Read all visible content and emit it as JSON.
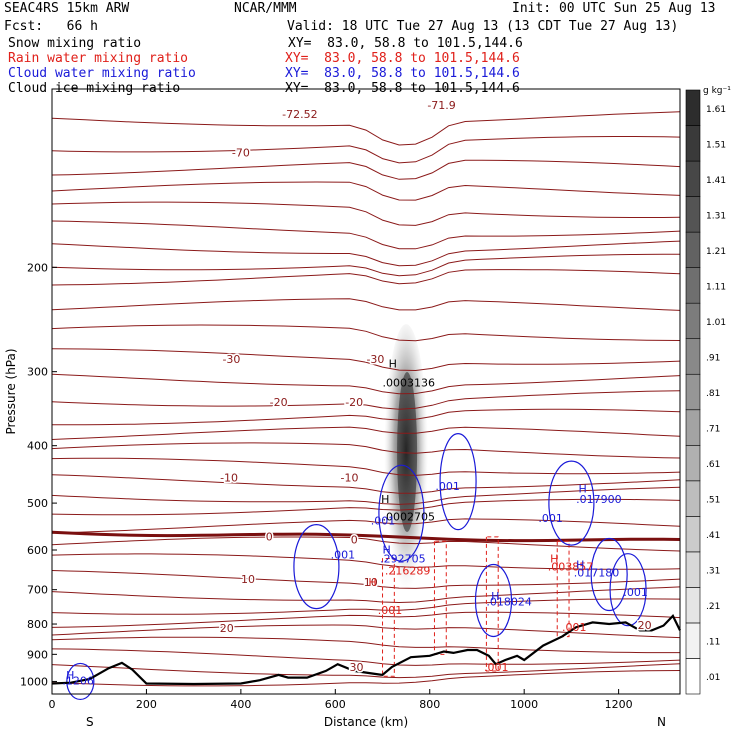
{
  "header": {
    "model": "SEAC4RS 15km ARW",
    "org": "NCAR/MMM",
    "init": "Init: 00 UTC Sun 25 Aug 13",
    "fcst": "Fcst:   66 h",
    "valid": "Valid: 18 UTC Tue 27 Aug 13 (13 CDT Tue 27 Aug 13)"
  },
  "fields": [
    {
      "name": "Snow mixing ratio",
      "xy": "XY=  83.0, 58.8 to 101.5,144.6",
      "color": "#000000"
    },
    {
      "name": "Rain water mixing ratio",
      "xy": "XY=  83.0, 58.8 to 101.5,144.6",
      "color": "#e0201a"
    },
    {
      "name": "Cloud water mixing ratio",
      "xy": "XY=  83.0, 58.8 to 101.5,144.6",
      "color": "#1a1ad8"
    },
    {
      "name": "Cloud ice mixing ratio",
      "xy": "XY=  83.0, 58.8 to 101.5,144.6",
      "color": "#000000"
    }
  ],
  "chart_data": {
    "type": "contour",
    "xlabel": "Distance (km)",
    "ylabel": "Pressure (hPa)",
    "xlim": [
      0,
      1330
    ],
    "ylim": [
      1050,
      100
    ],
    "y_log_pressure": true,
    "x_ticks": [
      0,
      200,
      400,
      600,
      800,
      1000,
      1200
    ],
    "y_ticks": [
      200,
      300,
      400,
      500,
      600,
      700,
      800,
      900,
      1000
    ],
    "direction_labels": {
      "left": "S",
      "right": "N"
    },
    "colorbar": {
      "unit": "g kg⁻¹",
      "levels": [
        ".01",
        ".11",
        ".21",
        ".31",
        ".41",
        ".51",
        ".61",
        ".71",
        ".81",
        ".91",
        "1.01",
        "1.11",
        "1.21",
        "1.31",
        "1.41",
        "1.51",
        "1.61"
      ]
    },
    "temperature_contours": {
      "color": "#8b1a1a",
      "labels": [
        {
          "text": "-72.52",
          "x": 525,
          "p": 112
        },
        {
          "text": "-71.9",
          "x": 825,
          "p": 108
        },
        {
          "text": "-70",
          "x": 400,
          "p": 130
        },
        {
          "text": "-30",
          "x": 380,
          "p": 290
        },
        {
          "text": "-30",
          "x": 685,
          "p": 290
        },
        {
          "text": "-20",
          "x": 480,
          "p": 343
        },
        {
          "text": "-20",
          "x": 640,
          "p": 343
        },
        {
          "text": "-10",
          "x": 375,
          "p": 460
        },
        {
          "text": "-10",
          "x": 630,
          "p": 460
        },
        {
          "text": "0",
          "x": 460,
          "p": 578
        },
        {
          "text": "0",
          "x": 640,
          "p": 585
        },
        {
          "text": "10",
          "x": 415,
          "p": 682
        },
        {
          "text": "10",
          "x": 675,
          "p": 690
        },
        {
          "text": "20",
          "x": 370,
          "p": 825
        },
        {
          "text": "20",
          "x": 1255,
          "p": 815
        },
        {
          "text": "30",
          "x": 645,
          "p": 960
        }
      ]
    },
    "annotations": [
      {
        "text": "H",
        "x": 713,
        "p": 295,
        "color": "#000000"
      },
      {
        "text": ".0003136",
        "x": 700,
        "p": 318,
        "color": "#000000"
      },
      {
        "text": "H",
        "x": 697,
        "p": 500,
        "color": "#000000"
      },
      {
        "text": ".0002705",
        "x": 700,
        "p": 535,
        "color": "#000000"
      },
      {
        "text": ".001",
        "x": 675,
        "p": 543,
        "color": "#1a1ad8"
      },
      {
        "text": ".001",
        "x": 812,
        "p": 475,
        "color": "#1a1ad8"
      },
      {
        "text": "H",
        "x": 1115,
        "p": 480,
        "color": "#1a1ad8"
      },
      {
        "text": ".017900",
        "x": 1110,
        "p": 500,
        "color": "#1a1ad8"
      },
      {
        "text": ".001",
        "x": 1030,
        "p": 538,
        "color": "#1a1ad8"
      },
      {
        "text": ".001",
        "x": 590,
        "p": 620,
        "color": "#1a1ad8"
      },
      {
        "text": "H",
        "x": 700,
        "p": 608,
        "color": "#1a1ad8"
      },
      {
        "text": ".292705",
        "x": 695,
        "p": 630,
        "color": "#1a1ad8"
      },
      {
        "text": ".216289",
        "x": 705,
        "p": 660,
        "color": "#e0201a"
      },
      {
        "text": "H",
        "x": 1055,
        "p": 630,
        "color": "#e0201a"
      },
      {
        "text": ".003857",
        "x": 1050,
        "p": 650,
        "color": "#e0201a"
      },
      {
        "text": "H",
        "x": 1110,
        "p": 645,
        "color": "#1a1ad8"
      },
      {
        "text": ".017180",
        "x": 1105,
        "p": 665,
        "color": "#1a1ad8"
      },
      {
        "text": ".001",
        "x": 1210,
        "p": 718,
        "color": "#1a1ad8"
      },
      {
        "text": "H",
        "x": 670,
        "p": 690,
        "color": "#e0201a"
      },
      {
        "text": "H",
        "x": 930,
        "p": 728,
        "color": "#1a1ad8"
      },
      {
        "text": ".018024",
        "x": 920,
        "p": 745,
        "color": "#1a1ad8"
      },
      {
        "text": ".001",
        "x": 690,
        "p": 770,
        "color": "#e0201a"
      },
      {
        "text": ".001",
        "x": 1080,
        "p": 822,
        "color": "#e0201a"
      },
      {
        "text": ".001",
        "x": 915,
        "p": 960,
        "color": "#e0201a"
      },
      {
        "text": "H",
        "x": 30,
        "p": 990,
        "color": "#1a1ad8"
      },
      {
        "text": ".1206",
        "x": 22,
        "p": 1012,
        "color": "#1a1ad8"
      }
    ],
    "terrain_pressure": [
      {
        "x": 0,
        "p": 1008
      },
      {
        "x": 40,
        "p": 1005
      },
      {
        "x": 80,
        "p": 990
      },
      {
        "x": 120,
        "p": 950
      },
      {
        "x": 148,
        "p": 930
      },
      {
        "x": 170,
        "p": 955
      },
      {
        "x": 200,
        "p": 1008
      },
      {
        "x": 300,
        "p": 1010
      },
      {
        "x": 400,
        "p": 1008
      },
      {
        "x": 440,
        "p": 995
      },
      {
        "x": 480,
        "p": 975
      },
      {
        "x": 500,
        "p": 985
      },
      {
        "x": 540,
        "p": 985
      },
      {
        "x": 580,
        "p": 960
      },
      {
        "x": 605,
        "p": 935
      },
      {
        "x": 640,
        "p": 960
      },
      {
        "x": 680,
        "p": 970
      },
      {
        "x": 700,
        "p": 975
      },
      {
        "x": 720,
        "p": 945
      },
      {
        "x": 760,
        "p": 910
      },
      {
        "x": 800,
        "p": 905
      },
      {
        "x": 830,
        "p": 890
      },
      {
        "x": 850,
        "p": 895
      },
      {
        "x": 880,
        "p": 885
      },
      {
        "x": 900,
        "p": 885
      },
      {
        "x": 925,
        "p": 905
      },
      {
        "x": 940,
        "p": 935
      },
      {
        "x": 960,
        "p": 920
      },
      {
        "x": 985,
        "p": 905
      },
      {
        "x": 1000,
        "p": 920
      },
      {
        "x": 1040,
        "p": 870
      },
      {
        "x": 1080,
        "p": 840
      },
      {
        "x": 1110,
        "p": 810
      },
      {
        "x": 1145,
        "p": 795
      },
      {
        "x": 1180,
        "p": 800
      },
      {
        "x": 1215,
        "p": 795
      },
      {
        "x": 1245,
        "p": 820
      },
      {
        "x": 1270,
        "p": 820
      },
      {
        "x": 1295,
        "p": 805
      },
      {
        "x": 1315,
        "p": 775
      },
      {
        "x": 1330,
        "p": 820
      }
    ]
  }
}
